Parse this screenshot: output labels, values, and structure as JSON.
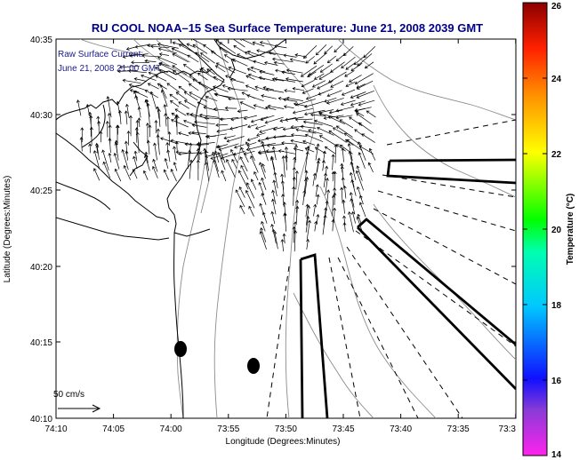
{
  "title": "RU COOL  NOAA–15  Sea Surface Temperature:  June 21, 2008 2039 GMT",
  "current_label": {
    "line1": "Raw Surface Current:",
    "line2": "June 21, 2008 21:00 GMT"
  },
  "scale": {
    "label": "50 cm/s"
  },
  "y_axis": {
    "label": "Latitude (Degrees:Minutes)",
    "ticks": [
      "40:35",
      "40:30",
      "40:25",
      "40:20",
      "40:15",
      "40:10"
    ]
  },
  "x_axis": {
    "label": "Longitude (Degrees:Minutes)",
    "ticks": [
      "74:10",
      "74:05",
      "74:00",
      "73:55",
      "73:50",
      "73:45",
      "73:40",
      "73:35",
      "73:3"
    ]
  },
  "colorbar": {
    "label": "Temperature (°C)",
    "ticks": [
      "26",
      "24",
      "22",
      "20",
      "18",
      "16",
      "14"
    ]
  },
  "colors": {
    "title": "#00008b",
    "label": "#1a1a8c",
    "coast": "#000000",
    "contour": "#8c8c8c"
  }
}
